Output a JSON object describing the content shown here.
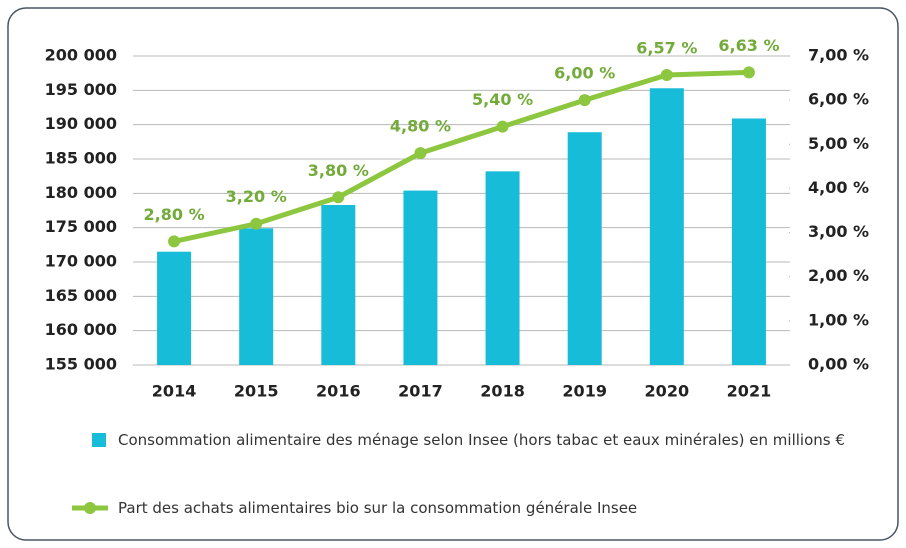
{
  "chart_data": {
    "type": "bar",
    "categories": [
      "2014",
      "2015",
      "2016",
      "2017",
      "2018",
      "2019",
      "2020",
      "2021"
    ],
    "series": [
      {
        "name": "Consommation alimentaire des ménage selon Insee (hors tabac et eaux minérales) en millions €",
        "color": "#17bcd8",
        "values": [
          171500,
          174900,
          178300,
          180400,
          183200,
          188900,
          195300,
          190900
        ]
      },
      {
        "name": "Part des achats alimentaires bio sur la consommation générale Insee",
        "type": "line",
        "axis": "y2",
        "color": "#8dc63f",
        "values": [
          2.8,
          3.2,
          3.8,
          4.8,
          5.4,
          6.0,
          6.57,
          6.63
        ],
        "value_labels": [
          "2,80 %",
          "3,20 %",
          "3,80 %",
          "4,80 %",
          "5,40 %",
          "6,00 %",
          "6,57 %",
          "6,63 %"
        ]
      }
    ],
    "ylim": [
      155000,
      200000
    ],
    "yticks": [
      {
        "value": 155000,
        "label": "155 000"
      },
      {
        "value": 160000,
        "label": "160 000"
      },
      {
        "value": 165000,
        "label": "165 000"
      },
      {
        "value": 170000,
        "label": "170 000"
      },
      {
        "value": 175000,
        "label": "175 000"
      },
      {
        "value": 180000,
        "label": "180 000"
      },
      {
        "value": 185000,
        "label": "185 000"
      },
      {
        "value": 190000,
        "label": "190 000"
      },
      {
        "value": 195000,
        "label": "195 000"
      },
      {
        "value": 200000,
        "label": "200 000"
      }
    ],
    "y2lim": [
      0,
      7
    ],
    "y2ticks": [
      {
        "value": 0,
        "label": "0,00 %"
      },
      {
        "value": 1,
        "label": "1,00 %"
      },
      {
        "value": 2,
        "label": "2,00 %"
      },
      {
        "value": 3,
        "label": "3,00 %"
      },
      {
        "value": 4,
        "label": "4,00 %"
      },
      {
        "value": 5,
        "label": "5,00 %"
      },
      {
        "value": 6,
        "label": "6,00 %"
      },
      {
        "value": 7,
        "label": "7,00 %"
      }
    ],
    "grid": true
  }
}
